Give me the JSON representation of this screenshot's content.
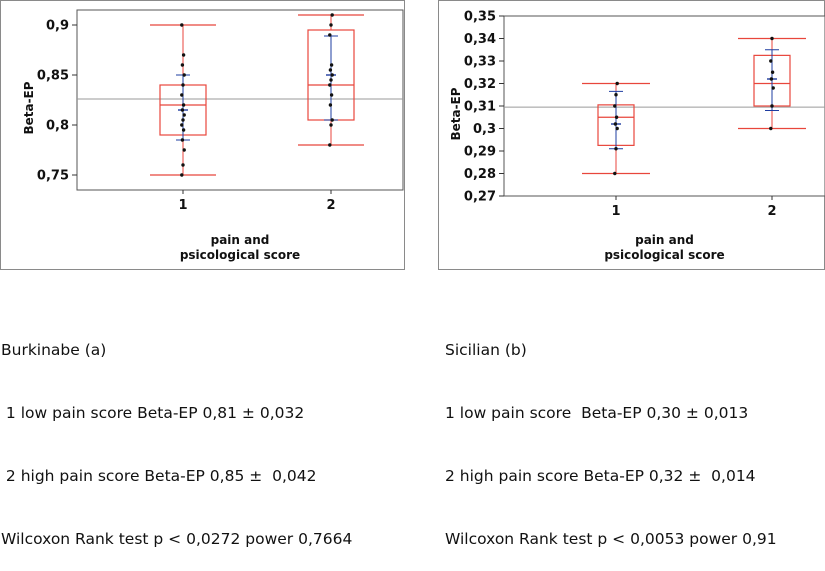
{
  "chart_data": [
    {
      "type": "box",
      "ylabel": "Beta-EP",
      "xlabel": [
        "pain and",
        "psicological score"
      ],
      "categories": [
        "1",
        "2"
      ],
      "ylim": [
        0.735,
        0.915
      ],
      "yticks": [
        "0,75",
        "0,8",
        "0,85",
        "0,9"
      ],
      "ytick_values": [
        0.75,
        0.8,
        0.85,
        0.9
      ],
      "reference_line": 0.826,
      "groups": [
        {
          "name": "1",
          "min": 0.75,
          "q1": 0.79,
          "median": 0.82,
          "q3": 0.84,
          "max": 0.9,
          "mean": 0.815,
          "ci": [
            0.785,
            0.85
          ],
          "points": [
            0.75,
            0.76,
            0.775,
            0.785,
            0.795,
            0.8,
            0.805,
            0.81,
            0.815,
            0.82,
            0.83,
            0.84,
            0.85,
            0.86,
            0.87,
            0.9
          ]
        },
        {
          "name": "2",
          "min": 0.78,
          "q1": 0.805,
          "median": 0.84,
          "q3": 0.895,
          "max": 0.91,
          "mean": 0.85,
          "ci": [
            0.805,
            0.889
          ],
          "points": [
            0.78,
            0.8,
            0.805,
            0.82,
            0.83,
            0.84,
            0.845,
            0.85,
            0.855,
            0.86,
            0.89,
            0.9,
            0.91
          ]
        }
      ]
    },
    {
      "type": "box",
      "ylabel": "Beta-EP",
      "xlabel": [
        "pain and",
        "psicological score"
      ],
      "categories": [
        "1",
        "2"
      ],
      "ylim": [
        0.27,
        0.35
      ],
      "yticks": [
        "0,27",
        "0,28",
        "0,29",
        "0,3",
        "0,31",
        "0,32",
        "0,33",
        "0,34",
        "0,35"
      ],
      "ytick_values": [
        0.27,
        0.28,
        0.29,
        0.3,
        0.31,
        0.32,
        0.33,
        0.34,
        0.35
      ],
      "reference_line": 0.3095,
      "groups": [
        {
          "name": "1",
          "min": 0.28,
          "q1": 0.2925,
          "median": 0.305,
          "q3": 0.3105,
          "max": 0.32,
          "mean": 0.302,
          "ci": [
            0.291,
            0.3165
          ],
          "points": [
            0.28,
            0.291,
            0.3,
            0.302,
            0.305,
            0.31,
            0.315,
            0.32
          ]
        },
        {
          "name": "2",
          "min": 0.3,
          "q1": 0.31,
          "median": 0.32,
          "q3": 0.3325,
          "max": 0.34,
          "mean": 0.322,
          "ci": [
            0.308,
            0.335
          ],
          "points": [
            0.3,
            0.31,
            0.318,
            0.322,
            0.325,
            0.33,
            0.34
          ]
        }
      ]
    }
  ],
  "captions": {
    "a": [
      "Burkinabe (a)",
      " 1 low pain score Beta-EP 0,81 ± 0,032",
      " 2 high pain score Beta-EP 0,85 ±  0,042",
      "Wilcoxon Rank test p < 0,0272 power 0,7664"
    ],
    "b": [
      "Sicilian (b)",
      "1 low pain score  Beta-EP 0,30 ± 0,013",
      "2 high pain score Beta-EP 0,32 ±  0,014",
      "Wilcoxon Rank test p < 0,0053 power 0,91"
    ]
  },
  "colors": {
    "box": "#e8463c",
    "marker": "#1e3ca0",
    "point": "#111111",
    "refline": "#9a9a9a"
  }
}
